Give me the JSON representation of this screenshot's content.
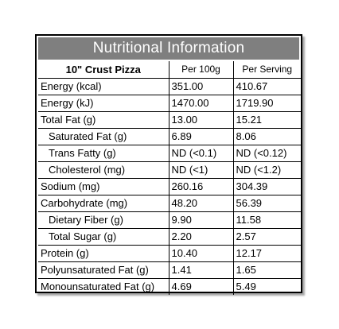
{
  "title": "Nutritional Information",
  "header": {
    "product": "10\" Crust Pizza",
    "col1": "Per 100g",
    "col2": "Per Serving"
  },
  "rows": [
    {
      "label": "Energy (kcal)",
      "per100": "351.00",
      "serving": "410.67",
      "indent": false
    },
    {
      "label": "Energy (kJ)",
      "per100": "1470.00",
      "serving": "1719.90",
      "indent": false
    },
    {
      "label": "Total Fat (g)",
      "per100": "13.00",
      "serving": "15.21",
      "indent": false
    },
    {
      "label": "Saturated Fat (g)",
      "per100": "6.89",
      "serving": "8.06",
      "indent": true
    },
    {
      "label": "Trans Fatty (g)",
      "per100": "ND (<0.1)",
      "serving": "ND (<0.12)",
      "indent": true
    },
    {
      "label": "Cholesterol (mg)",
      "per100": "ND (<1)",
      "serving": "ND (<1.2)",
      "indent": true
    },
    {
      "label": "Sodium (mg)",
      "per100": "260.16",
      "serving": "304.39",
      "indent": false
    },
    {
      "label": "Carbohydrate  (mg)",
      "per100": "48.20",
      "serving": "56.39",
      "indent": false
    },
    {
      "label": "Dietary Fiber (g)",
      "per100": "9.90",
      "serving": "11.58",
      "indent": true
    },
    {
      "label": "Total Sugar  (g)",
      "per100": "2.20",
      "serving": "2.57",
      "indent": true
    },
    {
      "label": "Protein  (g)",
      "per100": "10.40",
      "serving": "12.17",
      "indent": false
    },
    {
      "label": "Polyunsaturated Fat (g)",
      "per100": "1.41",
      "serving": "1.65",
      "indent": false
    },
    {
      "label": "Monounsaturated Fat (g)",
      "per100": "4.69",
      "serving": "5.49",
      "indent": false
    }
  ]
}
